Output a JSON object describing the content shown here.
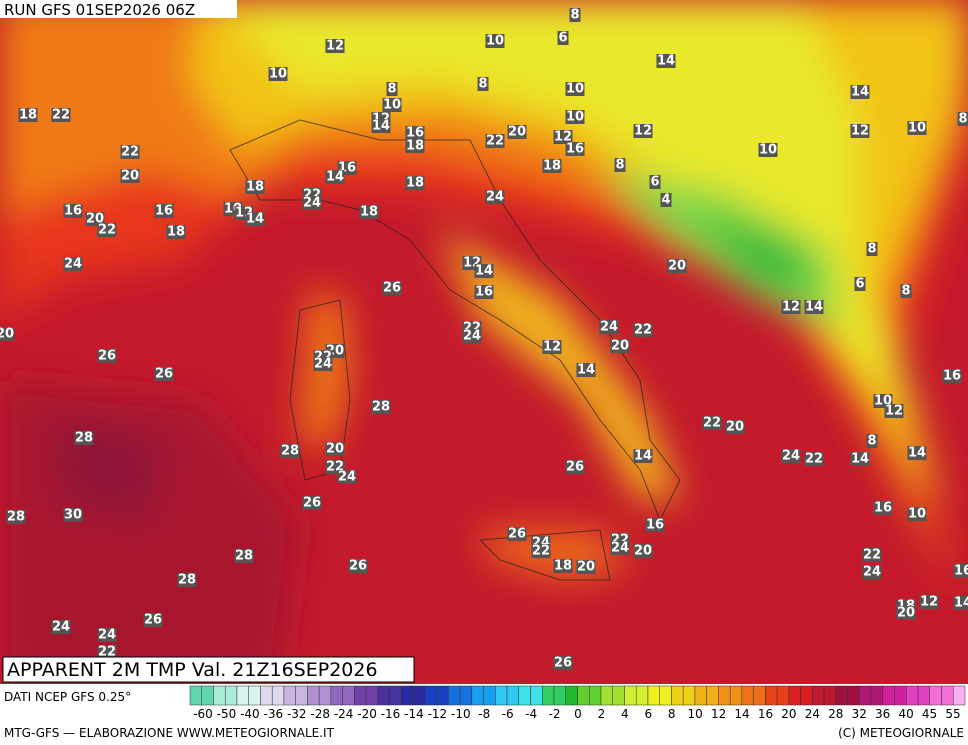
{
  "header": {
    "run": "RUN GFS 01SEP2026 06Z",
    "title": "APPARENT 2M TMP Val. 21Z16SEP2026",
    "source": "DATI NCEP GFS 0.25°",
    "footer_left": "MTG-GFS — ELABORAZIONE WWW.METEOGIORNALE.IT",
    "footer_right": "(C) METEOGIORNALE"
  },
  "map_labels": [
    8,
    10,
    6,
    12,
    14,
    10,
    8,
    8,
    10,
    14,
    10,
    10,
    12,
    14,
    8,
    10,
    12,
    12,
    18,
    22,
    16,
    18,
    22,
    20,
    12,
    16,
    10,
    22,
    20,
    8,
    18,
    16,
    14,
    6,
    18,
    18,
    22,
    24,
    24,
    4,
    16,
    20,
    16,
    18,
    10,
    12,
    14,
    22,
    18,
    8,
    24,
    12,
    14,
    20,
    6,
    8,
    16,
    26,
    12,
    14,
    20,
    22,
    24,
    24,
    22,
    20,
    22,
    24,
    26,
    12,
    20,
    26,
    14,
    16,
    28,
    10,
    12,
    28,
    22,
    20,
    8,
    28,
    20,
    22,
    24,
    24,
    22,
    14,
    14,
    14,
    26,
    26,
    16,
    10,
    28,
    30,
    16,
    26,
    24,
    22,
    22,
    24,
    20,
    28,
    26,
    18,
    20,
    22,
    24,
    16,
    28,
    12,
    14,
    18,
    20,
    26,
    24,
    24,
    22,
    26
  ],
  "scale_labels": [
    -60,
    -50,
    -40,
    -36,
    -32,
    -28,
    -24,
    -20,
    -16,
    -14,
    -12,
    -10,
    -8,
    -6,
    -4,
    -2,
    0,
    2,
    4,
    6,
    8,
    10,
    12,
    14,
    16,
    20,
    24,
    28,
    32,
    36,
    40,
    45,
    55
  ]
}
